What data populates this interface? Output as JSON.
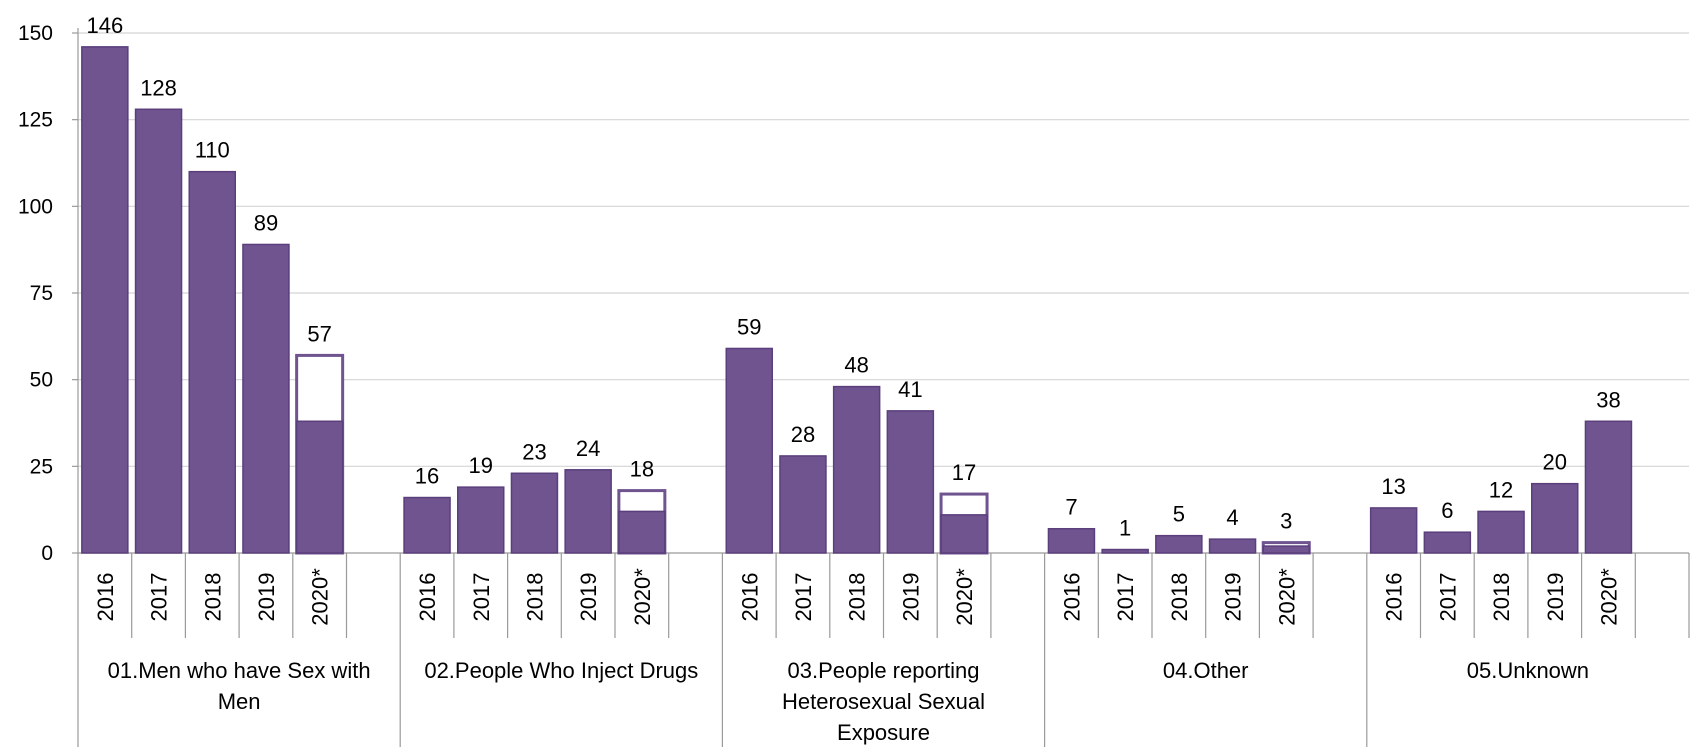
{
  "chart_data": {
    "type": "bar",
    "title": "",
    "xlabel": "",
    "ylabel": "",
    "ylim": [
      0,
      150
    ],
    "yticks": [
      0,
      25,
      50,
      75,
      100,
      125,
      150
    ],
    "grid": true,
    "legend": "none",
    "bar_color": "#6f5490",
    "bar_edge_color": "#5a3f7c",
    "groups": [
      {
        "label_lines": [
          "01.Men who have Sex with",
          "Men"
        ],
        "bars": [
          {
            "year": "2016",
            "value": 146,
            "label": "146"
          },
          {
            "year": "2017",
            "value": 128,
            "label": "128"
          },
          {
            "year": "2018",
            "value": 110,
            "label": "110"
          },
          {
            "year": "2019",
            "value": 89,
            "label": "89"
          },
          {
            "year": "2020*",
            "value": 57,
            "filled": 38,
            "label": "57"
          }
        ]
      },
      {
        "label_lines": [
          "02.People Who Inject Drugs"
        ],
        "bars": [
          {
            "year": "2016",
            "value": 16,
            "label": "16"
          },
          {
            "year": "2017",
            "value": 19,
            "label": "19"
          },
          {
            "year": "2018",
            "value": 23,
            "label": "23"
          },
          {
            "year": "2019",
            "value": 24,
            "label": "24"
          },
          {
            "year": "2020*",
            "value": 18,
            "filled": 12,
            "label": "18"
          }
        ]
      },
      {
        "label_lines": [
          "03.People reporting",
          "Heterosexual Sexual",
          "Exposure"
        ],
        "bars": [
          {
            "year": "2016",
            "value": 59,
            "label": "59"
          },
          {
            "year": "2017",
            "value": 28,
            "label": "28"
          },
          {
            "year": "2018",
            "value": 48,
            "label": "48"
          },
          {
            "year": "2019",
            "value": 41,
            "label": "41"
          },
          {
            "year": "2020*",
            "value": 17,
            "filled": 11,
            "label": "17"
          }
        ]
      },
      {
        "label_lines": [
          "04.Other"
        ],
        "bars": [
          {
            "year": "2016",
            "value": 7,
            "label": "7"
          },
          {
            "year": "2017",
            "value": 1,
            "label": "1"
          },
          {
            "year": "2018",
            "value": 5,
            "label": "5"
          },
          {
            "year": "2019",
            "value": 4,
            "label": "4"
          },
          {
            "year": "2020*",
            "value": 3,
            "filled": 2,
            "label": "3"
          }
        ]
      },
      {
        "label_lines": [
          "05.Unknown"
        ],
        "bars": [
          {
            "year": "2016",
            "value": 13,
            "label": "13"
          },
          {
            "year": "2017",
            "value": 6,
            "label": "6"
          },
          {
            "year": "2018",
            "value": 12,
            "label": "12"
          },
          {
            "year": "2019",
            "value": 20,
            "label": "20"
          },
          {
            "year": "2020*",
            "value": 38,
            "filled": 38,
            "label": "38"
          }
        ]
      }
    ]
  }
}
